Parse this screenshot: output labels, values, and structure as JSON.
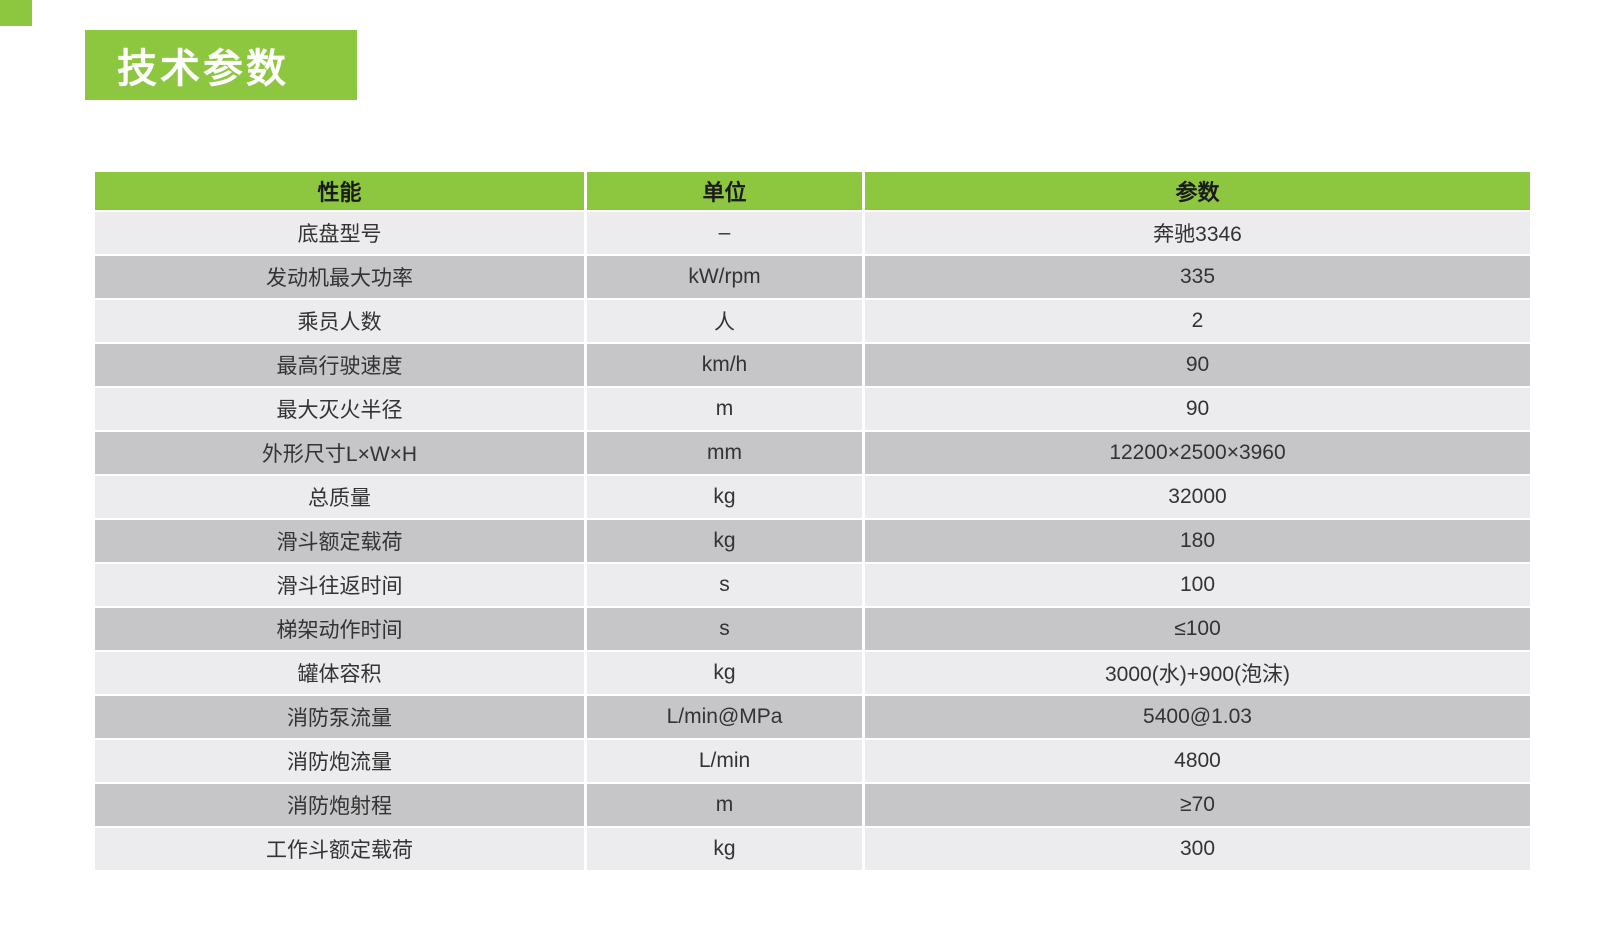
{
  "page": {
    "title_badge": "技术参数"
  },
  "colors": {
    "accent_green": "#8dc63f",
    "row_light": "#ececee",
    "row_dark": "#c6c6c8",
    "header_text": "#1b1b1b",
    "cell_text": "#333333"
  },
  "table": {
    "headers": [
      "性能",
      "单位",
      "参数"
    ],
    "rows": [
      {
        "name": "底盘型号",
        "unit": "–",
        "value": "奔驰3346"
      },
      {
        "name": "发动机最大功率",
        "unit": "kW/rpm",
        "value": "335"
      },
      {
        "name": "乘员人数",
        "unit": "人",
        "value": "2"
      },
      {
        "name": "最高行驶速度",
        "unit": "km/h",
        "value": "90"
      },
      {
        "name": "最大灭火半径",
        "unit": "m",
        "value": "90"
      },
      {
        "name": "外形尺寸L×W×H",
        "unit": "mm",
        "value": "12200×2500×3960"
      },
      {
        "name": "总质量",
        "unit": "kg",
        "value": "32000"
      },
      {
        "name": "滑斗额定载荷",
        "unit": "kg",
        "value": "180"
      },
      {
        "name": "滑斗往返时间",
        "unit": "s",
        "value": "100"
      },
      {
        "name": "梯架动作时间",
        "unit": "s",
        "value": "≤100"
      },
      {
        "name": "罐体容积",
        "unit": "kg",
        "value": "3000(水)+900(泡沫)"
      },
      {
        "name": "消防泵流量",
        "unit": "L/min@MPa",
        "value": "5400@1.03"
      },
      {
        "name": "消防炮流量",
        "unit": "L/min",
        "value": "4800"
      },
      {
        "name": "消防炮射程",
        "unit": "m",
        "value": "≥70"
      },
      {
        "name": "工作斗额定载荷",
        "unit": "kg",
        "value": "300"
      }
    ]
  }
}
